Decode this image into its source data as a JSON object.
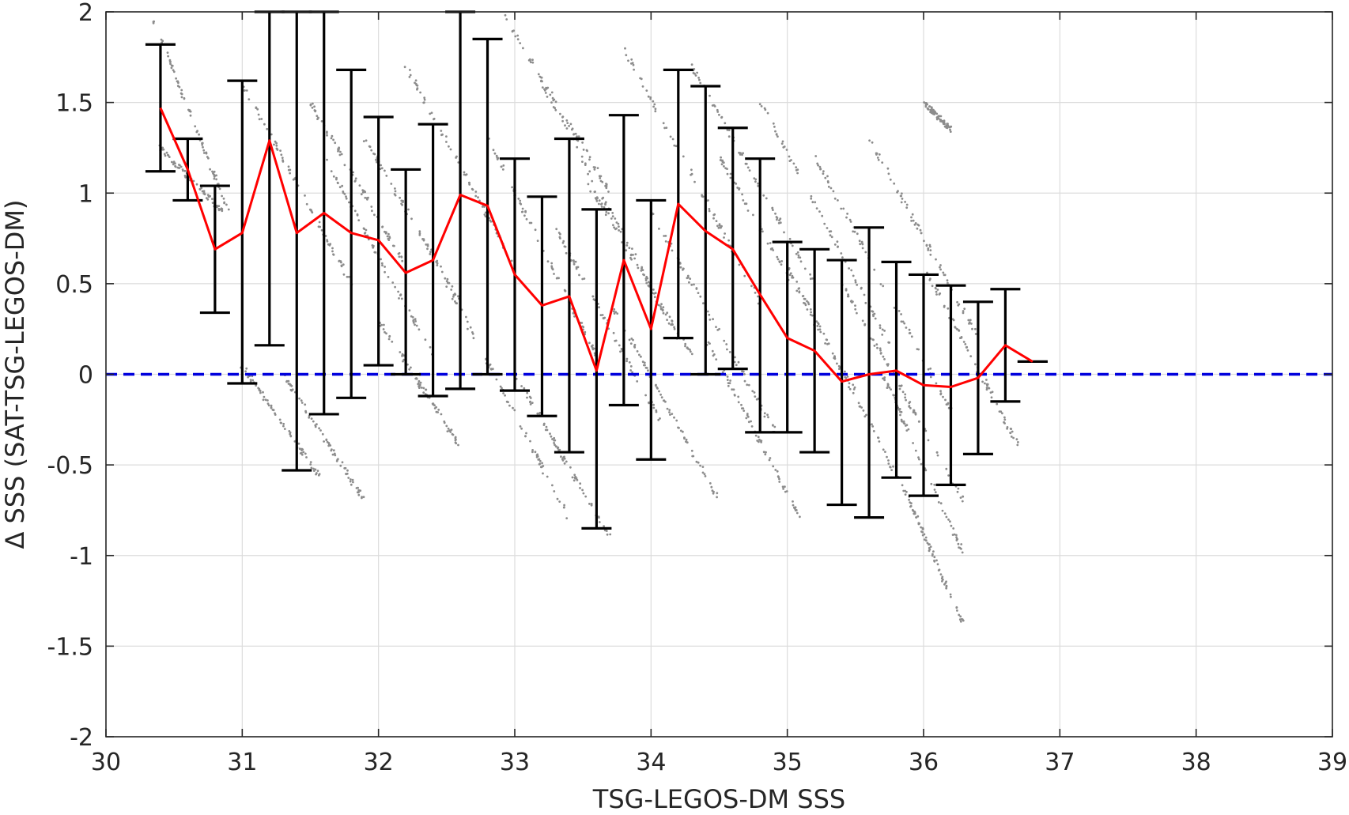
{
  "chart_data": {
    "type": "scatter",
    "title": "",
    "xlabel": "TSG-LEGOS-DM SSS",
    "ylabel": "Δ SSS (SAT-TSG-LEGOS-DM)",
    "xlim": [
      30,
      39
    ],
    "ylim": [
      -2,
      2
    ],
    "xticks": [
      30,
      31,
      32,
      33,
      34,
      35,
      36,
      37,
      38,
      39
    ],
    "yticks": [
      -2,
      -1.5,
      -1,
      -0.5,
      0,
      0.5,
      1,
      1.5,
      2
    ],
    "x_tick_labels": [
      "30",
      "31",
      "32",
      "33",
      "34",
      "35",
      "36",
      "37",
      "38",
      "39"
    ],
    "y_tick_labels": [
      "-2",
      "-1.5",
      "-1",
      "-0.5",
      "0",
      "0.5",
      "1",
      "1.5",
      "2"
    ],
    "grid": true,
    "legend": "none",
    "colors": {
      "scatter": "#8c8c8c",
      "mean_line": "#ff0000",
      "error_bars": "#000000",
      "zero_line": "#0000dd"
    },
    "scatter_streaks": [
      {
        "x": [
          30.35,
          30.9
        ],
        "y": [
          1.95,
          0.9
        ]
      },
      {
        "x": [
          30.4,
          30.85
        ],
        "y": [
          1.25,
          0.9
        ]
      },
      {
        "x": [
          31.0,
          31.8
        ],
        "y": [
          1.6,
          0.5
        ]
      },
      {
        "x": [
          31.0,
          31.6
        ],
        "y": [
          0.05,
          -0.6
        ]
      },
      {
        "x": [
          31.3,
          31.9
        ],
        "y": [
          0.0,
          -0.7
        ]
      },
      {
        "x": [
          31.5,
          32.2
        ],
        "y": [
          1.5,
          0.6
        ]
      },
      {
        "x": [
          31.6,
          32.4
        ],
        "y": [
          1.2,
          0.1
        ]
      },
      {
        "x": [
          31.9,
          32.6
        ],
        "y": [
          1.3,
          0.4
        ]
      },
      {
        "x": [
          32.0,
          32.6
        ],
        "y": [
          0.3,
          -0.4
        ]
      },
      {
        "x": [
          32.2,
          33.0
        ],
        "y": [
          1.7,
          0.6
        ]
      },
      {
        "x": [
          32.5,
          33.4
        ],
        "y": [
          0.5,
          -0.8
        ]
      },
      {
        "x": [
          32.8,
          33.6
        ],
        "y": [
          1.3,
          0.1
        ]
      },
      {
        "x": [
          32.9,
          33.7
        ],
        "y": [
          2.0,
          1.0
        ]
      },
      {
        "x": [
          33.0,
          33.7
        ],
        "y": [
          0.0,
          -0.9
        ]
      },
      {
        "x": [
          33.2,
          34.2
        ],
        "y": [
          1.6,
          0.2
        ]
      },
      {
        "x": [
          33.3,
          34.1
        ],
        "y": [
          0.8,
          -0.3
        ]
      },
      {
        "x": [
          33.5,
          34.3
        ],
        "y": [
          1.1,
          0.1
        ]
      },
      {
        "x": [
          33.7,
          34.5
        ],
        "y": [
          0.4,
          -0.7
        ]
      },
      {
        "x": [
          33.8,
          34.8
        ],
        "y": [
          1.8,
          0.4
        ]
      },
      {
        "x": [
          34.0,
          34.9
        ],
        "y": [
          0.9,
          -0.3
        ]
      },
      {
        "x": [
          34.3,
          35.2
        ],
        "y": [
          1.7,
          0.5
        ]
      },
      {
        "x": [
          34.4,
          35.1
        ],
        "y": [
          0.2,
          -0.8
        ]
      },
      {
        "x": [
          34.5,
          35.5
        ],
        "y": [
          1.2,
          -0.1
        ]
      },
      {
        "x": [
          34.8,
          35.8
        ],
        "y": [
          1.5,
          0.1
        ]
      },
      {
        "x": [
          35.0,
          35.9
        ],
        "y": [
          0.6,
          -0.7
        ]
      },
      {
        "x": [
          35.2,
          36.2
        ],
        "y": [
          1.2,
          -0.2
        ]
      },
      {
        "x": [
          35.4,
          36.3
        ],
        "y": [
          0.5,
          -0.7
        ]
      },
      {
        "x": [
          35.6,
          36.4
        ],
        "y": [
          1.3,
          0.2
        ]
      },
      {
        "x": [
          35.7,
          36.3
        ],
        "y": [
          0.0,
          -1.0
        ]
      },
      {
        "x": [
          36.0,
          36.7
        ],
        "y": [
          0.6,
          -0.4
        ]
      },
      {
        "x": [
          36.0,
          36.2
        ],
        "y": [
          1.5,
          1.35
        ]
      },
      {
        "x": [
          35.9,
          36.3
        ],
        "y": [
          -0.7,
          -1.4
        ]
      }
    ],
    "mean_series": {
      "x": [
        30.4,
        30.6,
        30.8,
        31.0,
        31.2,
        31.4,
        31.6,
        31.8,
        32.0,
        32.2,
        32.4,
        32.6,
        32.8,
        33.0,
        33.2,
        33.4,
        33.6,
        33.8,
        34.0,
        34.2,
        34.4,
        34.6,
        34.8,
        35.0,
        35.2,
        35.4,
        35.6,
        35.8,
        36.0,
        36.2,
        36.4,
        36.6,
        36.8
      ],
      "y": [
        1.47,
        1.13,
        0.69,
        0.78,
        1.29,
        0.78,
        0.89,
        0.78,
        0.74,
        0.56,
        0.63,
        0.99,
        0.93,
        0.55,
        0.38,
        0.43,
        0.02,
        0.63,
        0.25,
        0.94,
        0.79,
        0.69,
        0.44,
        0.2,
        0.13,
        -0.04,
        0.0,
        0.02,
        -0.06,
        -0.07,
        -0.02,
        0.16,
        0.07
      ]
    },
    "error_bars": {
      "x": [
        30.4,
        30.6,
        30.8,
        31.0,
        31.2,
        31.4,
        31.6,
        31.8,
        32.0,
        32.2,
        32.4,
        32.6,
        32.8,
        33.0,
        33.2,
        33.4,
        33.6,
        33.8,
        34.0,
        34.2,
        34.4,
        34.6,
        34.8,
        35.0,
        35.2,
        35.4,
        35.6,
        35.8,
        36.0,
        36.2,
        36.4,
        36.6,
        36.8
      ],
      "lower": [
        1.12,
        0.96,
        0.34,
        -0.05,
        0.16,
        -0.53,
        -0.22,
        -0.13,
        0.05,
        0.0,
        -0.12,
        -0.08,
        0.0,
        -0.09,
        -0.23,
        -0.43,
        -0.85,
        -0.17,
        -0.47,
        0.2,
        0.0,
        0.03,
        -0.32,
        -0.32,
        -0.43,
        -0.72,
        -0.79,
        -0.57,
        -0.67,
        -0.61,
        -0.44,
        -0.15,
        0.07
      ],
      "upper": [
        1.82,
        1.3,
        1.04,
        1.62,
        2.0,
        2.0,
        2.0,
        1.68,
        1.42,
        1.13,
        1.38,
        2.0,
        1.85,
        1.19,
        0.98,
        1.3,
        0.91,
        1.43,
        0.96,
        1.68,
        1.59,
        1.36,
        1.19,
        0.73,
        0.69,
        0.63,
        0.81,
        0.62,
        0.55,
        0.49,
        0.4,
        0.47,
        0.07
      ]
    },
    "reference_line": {
      "y": 0,
      "style": "dashed"
    }
  }
}
